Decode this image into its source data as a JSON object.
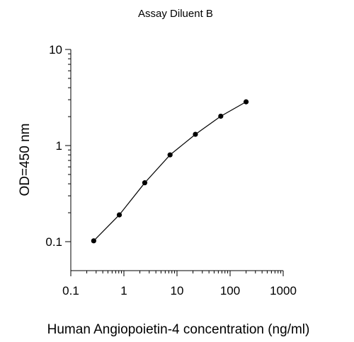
{
  "chart_data": {
    "type": "line",
    "title": "Assay Diluent B",
    "xlabel": "Human Angiopoietin-4 concentration (ng/ml)",
    "ylabel": "OD=450 nm",
    "x_scale": "log",
    "y_scale": "log",
    "xlim": [
      0.1,
      1000
    ],
    "ylim": [
      0.1,
      10
    ],
    "x_ticks": [
      "0.1",
      "1",
      "10",
      "100",
      "1000"
    ],
    "y_ticks": [
      "0.1",
      "1",
      "10"
    ],
    "grid": false,
    "series": [
      {
        "x": [
          0.27,
          0.82,
          2.47,
          7.4,
          22.2,
          66.7,
          200
        ],
        "y": [
          0.102,
          0.19,
          0.41,
          0.8,
          1.31,
          2.02,
          2.85
        ]
      }
    ],
    "colors": {
      "line": "#000000",
      "marker": "#000000"
    }
  }
}
